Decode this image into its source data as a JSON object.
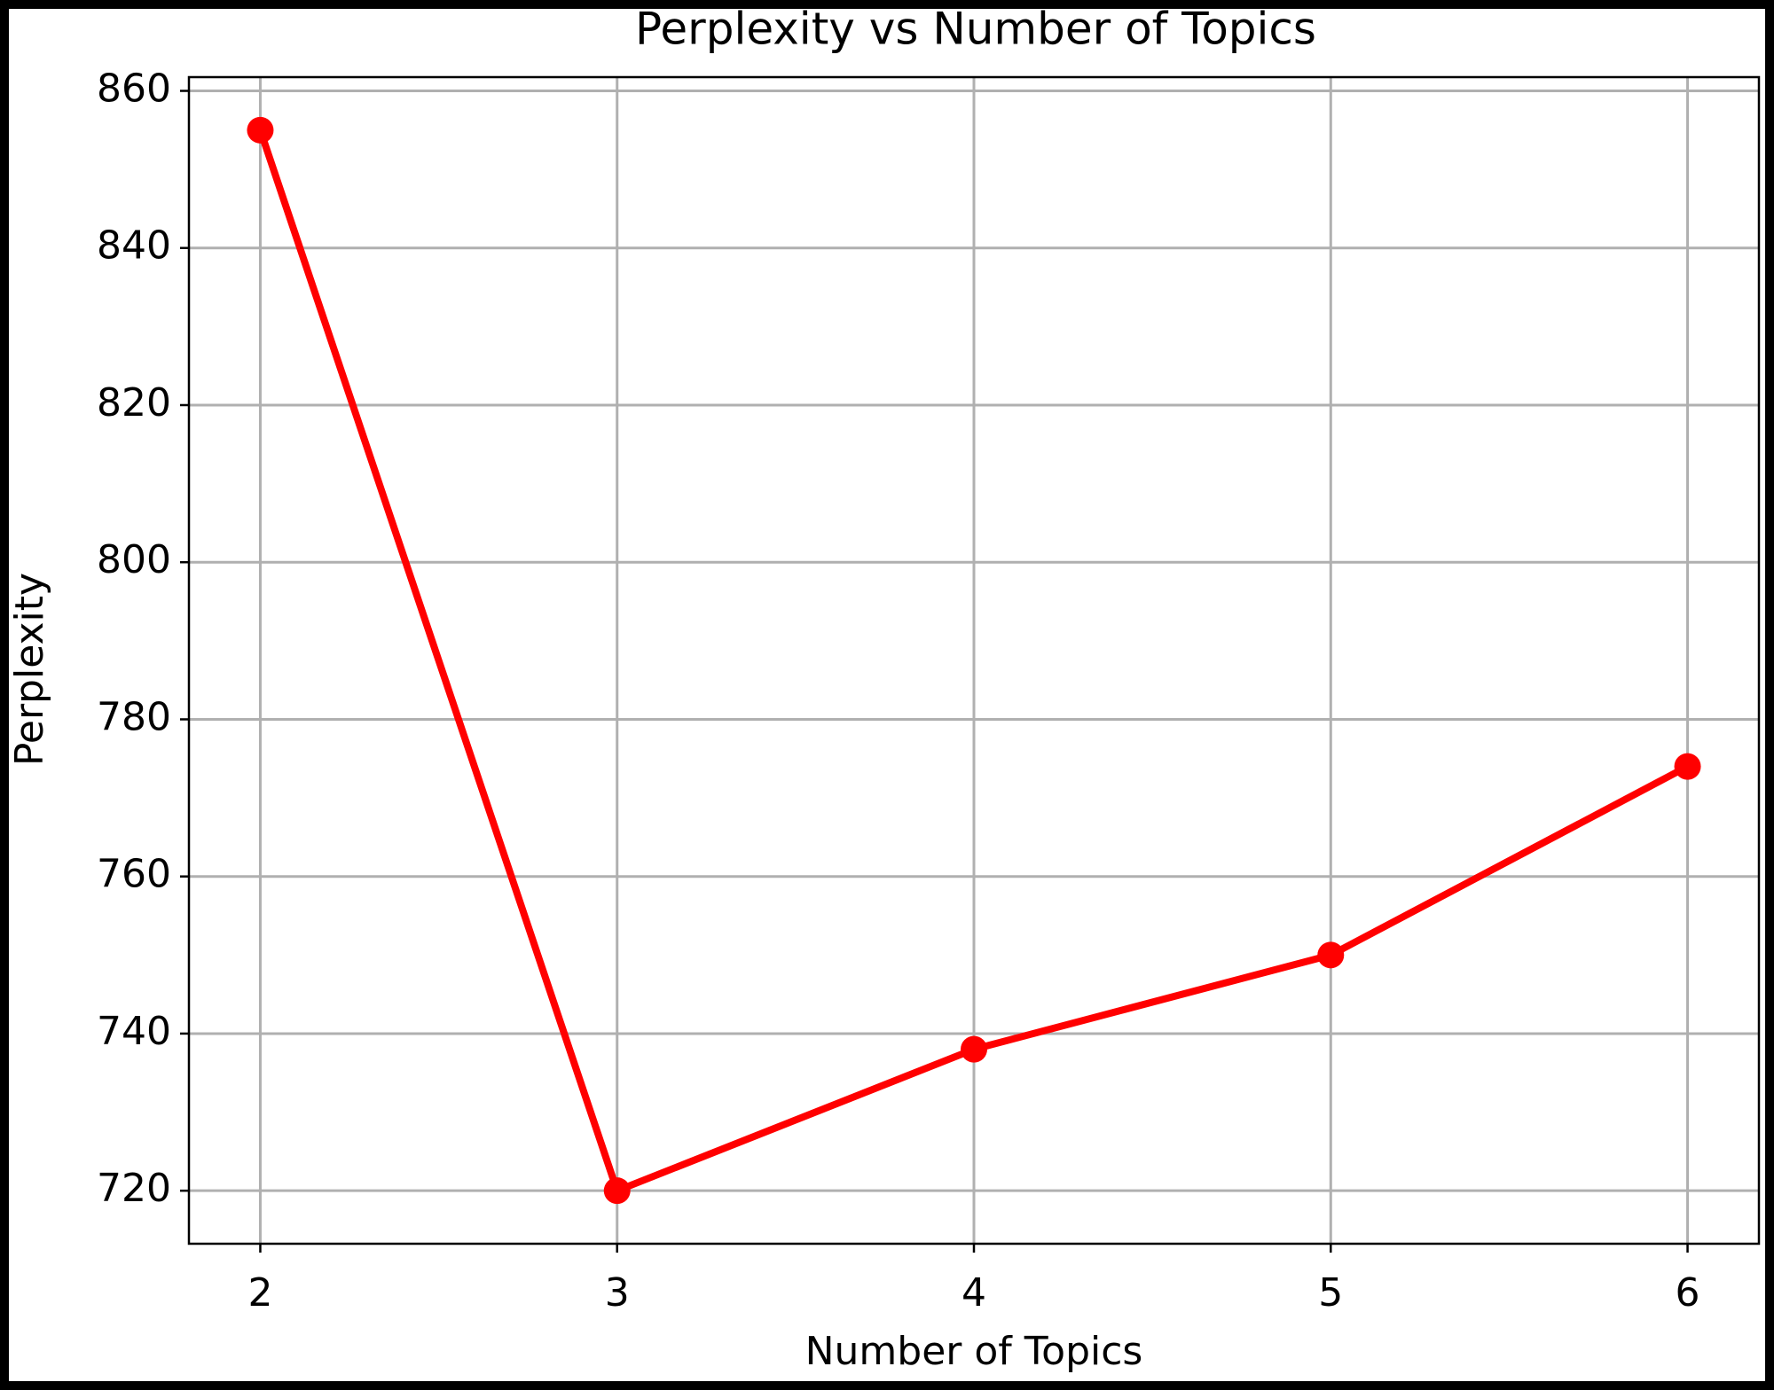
{
  "chart_data": {
    "type": "line",
    "title": "Perplexity vs Number of Topics",
    "x_label": "Number of Topics",
    "y_label": "Perplexity",
    "x": [
      2,
      3,
      4,
      5,
      6
    ],
    "series": [
      {
        "name": "Perplexity",
        "color": "#ff0000",
        "values": [
          855,
          720,
          738,
          750,
          774
        ]
      }
    ],
    "xlim": [
      1.8,
      6.2
    ],
    "xticks": [
      2,
      3,
      4,
      5,
      6
    ],
    "ylim": [
      713.25,
      861.75
    ],
    "yticks": [
      720,
      740,
      760,
      780,
      800,
      820,
      840,
      860
    ],
    "grid": true
  }
}
